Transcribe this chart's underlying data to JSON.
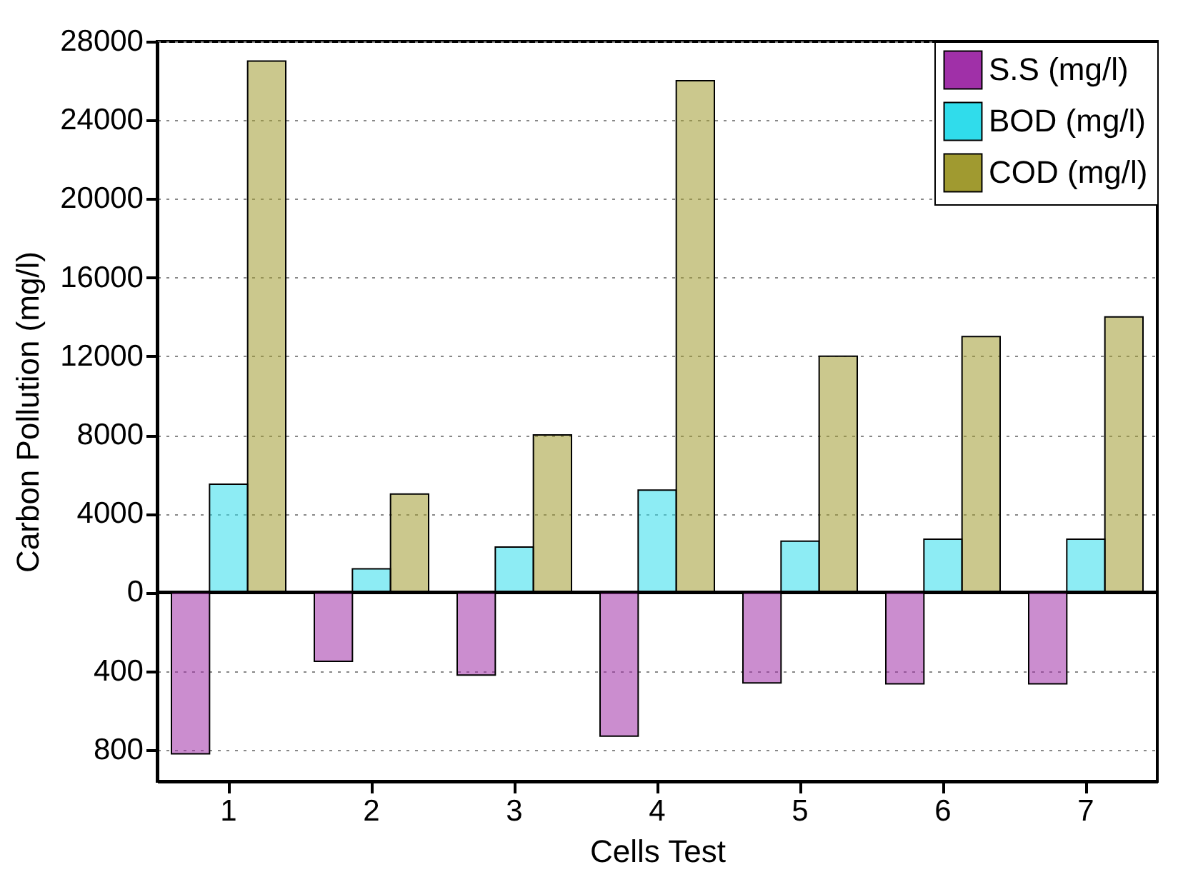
{
  "chart_data": {
    "type": "bar",
    "xlabel": "Cells Test",
    "ylabel": "Carbon Pollution (mg/l)",
    "categories": [
      "1",
      "2",
      "3",
      "4",
      "5",
      "6",
      "7"
    ],
    "series": [
      {
        "name": "S.S (mg/l)",
        "color": "#a030a8",
        "axis": "y2",
        "values": [
          820,
          350,
          420,
          730,
          460,
          465,
          465
        ]
      },
      {
        "name": "BOD (mg/l)",
        "color": "#30dceb",
        "values": [
          5500,
          1200,
          2300,
          5200,
          2600,
          2700,
          2700
        ]
      },
      {
        "name": "COD (mg/l)",
        "color": "#a09a30",
        "values": [
          27000,
          5000,
          8000,
          26000,
          12000,
          13000,
          14000
        ]
      }
    ],
    "ylim": [
      -9600,
      28000
    ],
    "yticks": [
      0,
      4000,
      8000,
      12000,
      16000,
      20000,
      24000,
      28000
    ],
    "y2lim": [
      960,
      -2800
    ],
    "y2ticks": [
      400,
      800
    ],
    "ref_lines": [
      {
        "axis": "y",
        "value": 0,
        "color": "#000000"
      }
    ],
    "grid": "y",
    "legend": "top right"
  }
}
